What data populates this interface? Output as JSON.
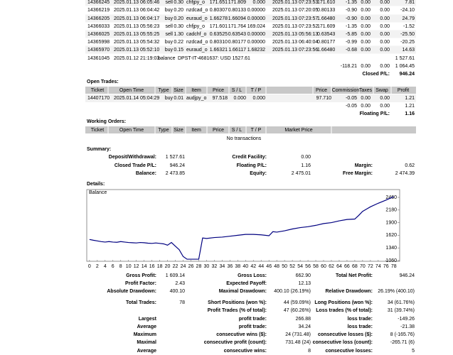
{
  "closed_trades": {
    "rows": [
      [
        "14366245",
        "2025.01.13 06:05:46",
        "sell",
        "0.30",
        "chfjpy_o",
        "171.651",
        "171.809",
        "0.000",
        "2025.01.13 07:23:53",
        "171.610",
        "-1.35",
        "0.00",
        "0.00",
        "7.81"
      ],
      [
        "14366219",
        "2025.01.13 06:04:42",
        "buy",
        "0.20",
        "nzdcad_o",
        "0.80307",
        "0.80133",
        "0.00000",
        "2025.01.13 07:20:05",
        "0.80133",
        "-0.90",
        "0.00",
        "0.00",
        "-24.10"
      ],
      [
        "14366205",
        "2025.01.13 06:04:17",
        "buy",
        "0.20",
        "euraud_o",
        "1.66278",
        "1.66094",
        "0.00000",
        "2025.01.13 07:23:57",
        "1.66480",
        "-0.90",
        "0.00",
        "0.00",
        "24.79"
      ],
      [
        "14366033",
        "2025.01.13 05:56:23",
        "sell",
        "0.30",
        "chfjpy_o",
        "171.601",
        "171.764",
        "169.024",
        "2025.01.13 07:23:52",
        "171.609",
        "-1.35",
        "0.00",
        "0.00",
        "-1.52"
      ],
      [
        "14366025",
        "2025.01.13 05:55:25",
        "sell",
        "1.30",
        "cadchf_o",
        "0.63525",
        "0.63543",
        "0.00000",
        "2025.01.13 05:56:13",
        "0.63543",
        "-5.85",
        "0.00",
        "0.00",
        "-25.50"
      ],
      [
        "14365998",
        "2025.01.13 05:54:32",
        "buy",
        "0.22",
        "nzdcad_o",
        "0.80310",
        "0.80177",
        "0.00000",
        "2025.01.13 06:40:04",
        "0.80177",
        "-0.99",
        "0.00",
        "0.00",
        "-20.25"
      ],
      [
        "14365970",
        "2025.01.13 05:52:10",
        "buy",
        "0.15",
        "euraud_o",
        "1.66321",
        "1.66117",
        "1.68232",
        "2025.01.13 07:23:56",
        "1.66480",
        "-0.68",
        "0.00",
        "0.00",
        "14.63"
      ]
    ],
    "balance_row": [
      "14361045",
      "2025.01.12 21:19:03",
      "balance",
      "DPST-IT-4681637: USD 1527.61",
      "1 527.61"
    ],
    "totals": [
      "-118.21",
      "0.00",
      "0.00",
      "1 064.45"
    ],
    "closed_pl_label": "Closed P/L:",
    "closed_pl": "946.24"
  },
  "open_trades": {
    "title": "Open Trades:",
    "header": [
      "Ticket",
      "Open Time",
      "Type",
      "Size",
      "Item",
      "Price",
      "S / L",
      "T / P",
      "Price",
      "Commission",
      "Taxes",
      "Swap",
      "Profit"
    ],
    "rows": [
      [
        "14407170",
        "2025.01.14 05:04:29",
        "buy",
        "0.01",
        "audjpy_o",
        "97.518",
        "0.000",
        "0.000",
        "97.710",
        "-0.05",
        "0.00",
        "0.00",
        "1.21"
      ]
    ],
    "totals": [
      "-0.05",
      "0.00",
      "0.00",
      "1.21"
    ],
    "floating_pl_label": "Floating P/L:",
    "floating_pl": "1.16"
  },
  "working_orders": {
    "title": "Working Orders:",
    "header": [
      "Ticket",
      "Open Time",
      "Type",
      "Size",
      "Item",
      "Price",
      "S / L",
      "T / P",
      "Market Price"
    ],
    "empty": "No transactions"
  },
  "summary": {
    "title": "Summary:",
    "rows": [
      {
        "c1": [
          "Deposit/Withdrawal:",
          "1 527.61"
        ],
        "c2": [
          "Credit Facility:",
          "0.00"
        ]
      },
      {
        "c1": [
          "Closed Trade P/L:",
          "946.24"
        ],
        "c2": [
          "Floating P/L:",
          "1.16"
        ],
        "c3": [
          "Margin:",
          "0.62"
        ]
      },
      {
        "c1": [
          "Balance:",
          "2 473.85"
        ],
        "c2": [
          "Equity:",
          "2 475.01"
        ],
        "c3": [
          "Free Margin:",
          "2 474.39"
        ]
      }
    ]
  },
  "details": {
    "title": "Details:",
    "chart": {
      "type": "line",
      "label": "Balance",
      "color": "#000080",
      "x": [
        0,
        1,
        2,
        3,
        4,
        5,
        6,
        7,
        8,
        9,
        10,
        11,
        12,
        13,
        14,
        15,
        16,
        17,
        18,
        19,
        20,
        21,
        22,
        23,
        24,
        25,
        26,
        27,
        28,
        29,
        30,
        32,
        34,
        36,
        38,
        40,
        42,
        44,
        46,
        47,
        48,
        50,
        52,
        54,
        56,
        58,
        60,
        62,
        64,
        66,
        68,
        69,
        70,
        71,
        72,
        74,
        76,
        77,
        78
      ],
      "values": [
        1527,
        1510,
        1495,
        1480,
        1470,
        1480,
        1470,
        1465,
        1480,
        1470,
        1460,
        1455,
        1450,
        1460,
        1455,
        1445,
        1440,
        1450,
        1440,
        1430,
        1400,
        1460,
        1380,
        1300,
        1150,
        1090,
        1090,
        1090,
        1090,
        1560,
        1550,
        1570,
        1580,
        1600,
        1620,
        1640,
        1640,
        1630,
        1610,
        1700,
        1690,
        1720,
        1760,
        1790,
        1810,
        1840,
        1880,
        1900,
        1940,
        1970,
        1980,
        2060,
        2150,
        2200,
        2250,
        2330,
        2400,
        2440,
        2474
      ],
      "xlim": [
        -0.7,
        79.5
      ],
      "xticks": [
        0,
        2,
        4,
        6,
        8,
        10,
        12,
        14,
        16,
        18,
        20,
        22,
        24,
        26,
        28,
        30,
        32,
        34,
        36,
        38,
        40,
        42,
        44,
        46,
        48,
        50,
        52,
        54,
        56,
        58,
        60,
        62,
        64,
        66,
        68,
        70,
        72,
        74,
        76,
        78
      ],
      "ylim": [
        1044,
        2633
      ],
      "yticks": [
        1060,
        1340,
        1620,
        1900,
        2180,
        2460
      ]
    },
    "stats": [
      {
        "c1": [
          "Gross Profit:",
          "1 609.14"
        ],
        "c2": [
          "Gross Loss:",
          "662.90"
        ],
        "c3": [
          "Total Net Profit:",
          "946.24"
        ]
      },
      {
        "c1": [
          "Profit Factor:",
          "2.43"
        ],
        "c2": [
          "Expected Payoff:",
          "12.13"
        ]
      },
      {
        "c1": [
          "Absolute Drawdown:",
          "400.10"
        ],
        "c2": [
          "Maximal Drawdown:",
          "400.10 (26.19%)"
        ],
        "c3": [
          "Relative Drawdown:",
          "26.19% (400.10)"
        ]
      },
      {
        "c1": [
          "Total Trades:",
          "78"
        ],
        "c2": [
          "Short Positions (won %):",
          "44 (59.09%)"
        ],
        "c3": [
          "Long Positions (won %):",
          "34 (61.76%)"
        ]
      },
      {
        "c2": [
          "Profit Trades (% of total):",
          "47 (60.26%)"
        ],
        "c3": [
          "Loss trades (% of total):",
          "31 (39.74%)"
        ]
      },
      {
        "c1": [
          "Largest"
        ],
        "c2": [
          "profit trade:",
          "266.88"
        ],
        "c3": [
          "loss trade:",
          "-149.26"
        ]
      },
      {
        "c1": [
          "Average"
        ],
        "c2": [
          "profit trade:",
          "34.24"
        ],
        "c3": [
          "loss trade:",
          "-21.38"
        ]
      },
      {
        "c1": [
          "Maximum"
        ],
        "c2": [
          "consecutive wins ($):",
          "24 (731.48)"
        ],
        "c3": [
          "consecutive losses ($):",
          "8 (-165.76)"
        ]
      },
      {
        "c1": [
          "Maximal"
        ],
        "c2": [
          "consecutive profit (count):",
          "731.48 (24)"
        ],
        "c3": [
          "consecutive loss (count):",
          "-265.71 (6)"
        ]
      },
      {
        "c1": [
          "Average"
        ],
        "c2": [
          "consecutive wins:",
          "8"
        ],
        "c3": [
          "consecutive losses:",
          "5"
        ]
      }
    ]
  }
}
